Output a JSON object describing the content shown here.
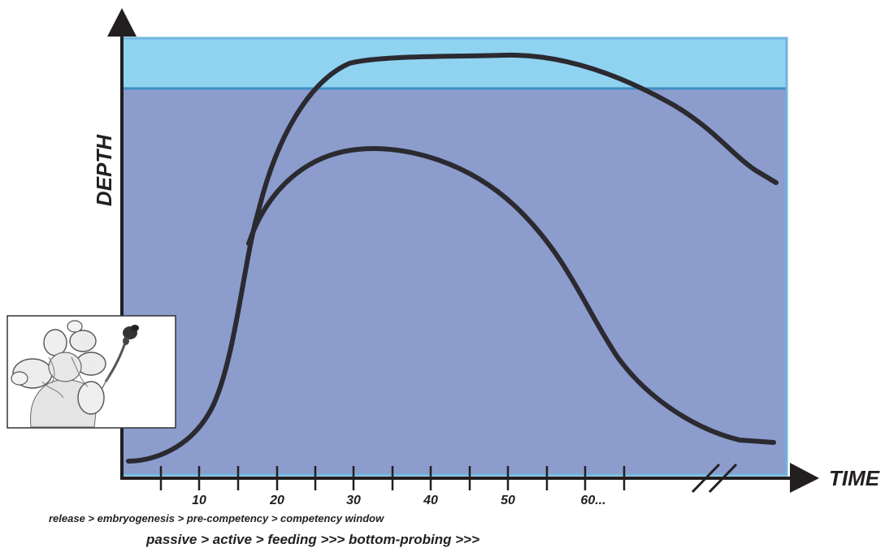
{
  "labels": {
    "y_axis": "DEPTH",
    "x_axis": "TIME"
  },
  "x_ticks": [
    "10",
    "20",
    "30",
    "40",
    "50",
    "60..."
  ],
  "captions": {
    "stages": "release > embryogenesis > pre-competency > competency window",
    "behaviors": "passive > active > feeding >>> bottom-probing >>>"
  },
  "colors": {
    "surface_layer": "#8fd3f0",
    "surface_line": "#3f8fc4",
    "deep_water": "#8c9ccc",
    "border": "#6fb6dd",
    "curve": "#2b2a30",
    "axis": "#231f20"
  },
  "inset": {
    "icon": "larva-sketch-icon"
  }
}
